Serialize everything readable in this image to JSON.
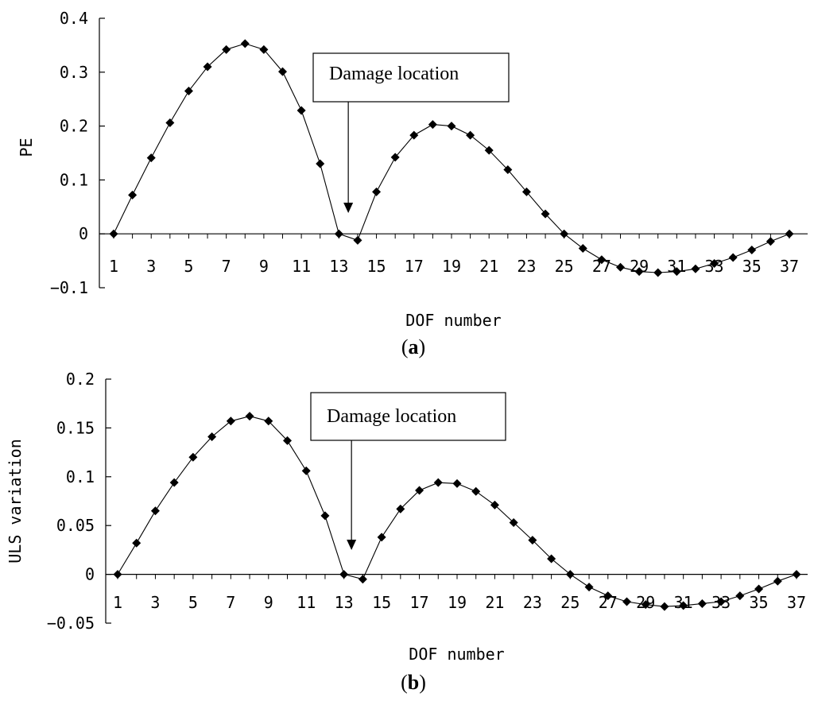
{
  "chart_data": [
    {
      "type": "line",
      "panel_label": "a",
      "xlabel": "DOF number",
      "ylabel": "PE",
      "ylim": [
        -0.1,
        0.4
      ],
      "yticks": [
        "0.4",
        "0.3",
        "0.2",
        "0.1",
        "0",
        "-0.1"
      ],
      "xlim": [
        1,
        37
      ],
      "xticks": [
        "1",
        "3",
        "5",
        "7",
        "9",
        "11",
        "13",
        "15",
        "17",
        "19",
        "21",
        "23",
        "25",
        "27",
        "29",
        "31",
        "33",
        "35",
        "37"
      ],
      "grid": false,
      "legend": "none",
      "annotation": {
        "text": "Damage location",
        "x": 13.5
      },
      "series": [
        {
          "x": [
            1,
            2,
            3,
            4,
            5,
            6,
            7,
            8,
            9,
            10,
            11,
            12,
            13,
            14,
            15,
            16,
            17,
            18,
            19,
            20,
            21,
            22,
            23,
            24,
            25,
            26,
            27,
            28,
            29,
            30,
            31,
            32,
            33,
            34,
            35,
            36,
            37
          ],
          "values": [
            0,
            0.072,
            0.141,
            0.206,
            0.265,
            0.31,
            0.342,
            0.353,
            0.342,
            0.301,
            0.229,
            0.13,
            0,
            -0.012,
            0.078,
            0.142,
            0.183,
            0.203,
            0.2,
            0.183,
            0.155,
            0.119,
            0.078,
            0.037,
            0,
            -0.027,
            -0.048,
            -0.062,
            -0.07,
            -0.072,
            -0.07,
            -0.065,
            -0.055,
            -0.044,
            -0.03,
            -0.014,
            0
          ]
        }
      ]
    },
    {
      "type": "line",
      "panel_label": "b",
      "xlabel": "DOF number",
      "ylabel": "ULS variation",
      "ylim": [
        -0.05,
        0.2
      ],
      "yticks": [
        "0.2",
        "0.15",
        "0.1",
        "0.05",
        "0",
        "-0.05"
      ],
      "xlim": [
        1,
        37
      ],
      "xticks": [
        "1",
        "3",
        "5",
        "7",
        "9",
        "11",
        "13",
        "15",
        "17",
        "19",
        "21",
        "23",
        "25",
        "27",
        "29",
        "31",
        "33",
        "35",
        "37"
      ],
      "grid": false,
      "legend": "none",
      "annotation": {
        "text": "Damage location",
        "x": 13.4
      },
      "series": [
        {
          "x": [
            1,
            2,
            3,
            4,
            5,
            6,
            7,
            8,
            9,
            10,
            11,
            12,
            13,
            14,
            15,
            16,
            17,
            18,
            19,
            20,
            21,
            22,
            23,
            24,
            25,
            26,
            27,
            28,
            29,
            30,
            31,
            32,
            33,
            34,
            35,
            36,
            37
          ],
          "values": [
            0,
            0.032,
            0.065,
            0.094,
            0.12,
            0.141,
            0.157,
            0.162,
            0.157,
            0.137,
            0.106,
            0.06,
            0,
            -0.005,
            0.038,
            0.067,
            0.086,
            0.094,
            0.093,
            0.085,
            0.071,
            0.053,
            0.035,
            0.016,
            0,
            -0.013,
            -0.022,
            -0.028,
            -0.031,
            -0.033,
            -0.032,
            -0.03,
            -0.028,
            -0.022,
            -0.015,
            -0.007,
            0
          ]
        }
      ]
    }
  ]
}
